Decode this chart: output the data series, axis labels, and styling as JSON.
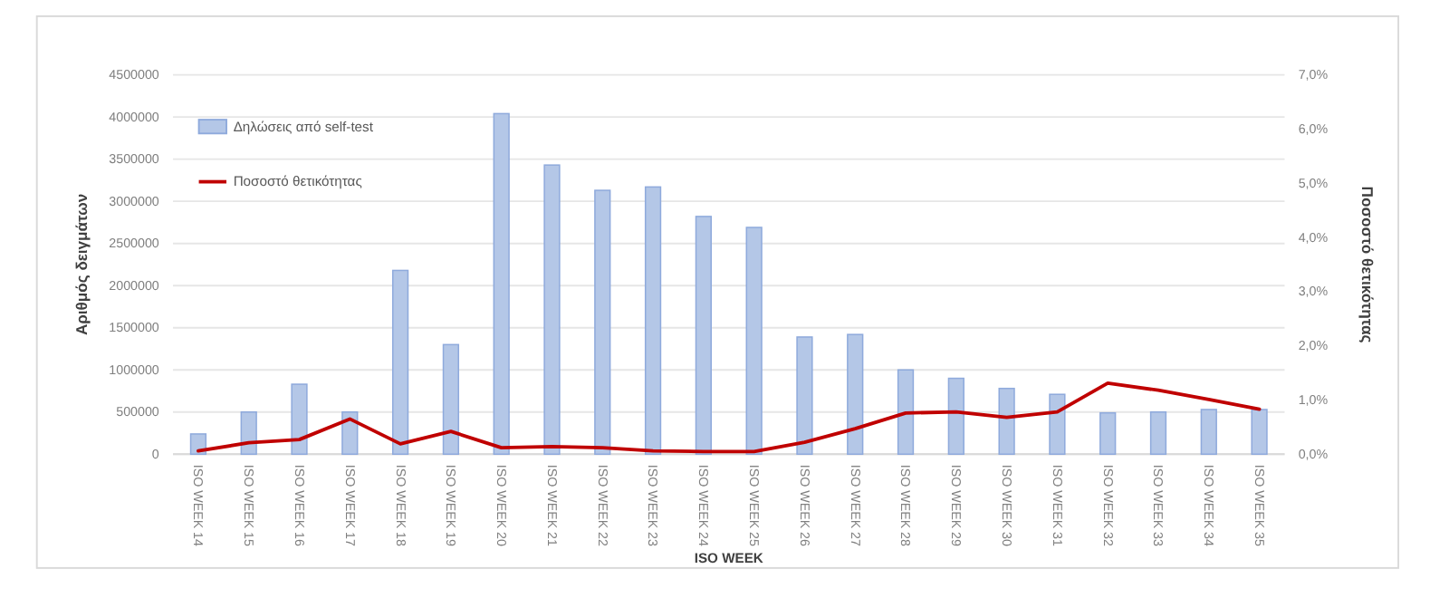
{
  "chart_data": {
    "type": "bar",
    "xlabel": "ISO WEEK",
    "ylabel": "Αριθμός δειγμάτων",
    "y2label": "Ποσοστό θετικότητας",
    "categories": [
      "ISO WEEK 14",
      "ISO WEEK 15",
      "ISO WEEK 16",
      "ISO WEEK 17",
      "ISO WEEK 18",
      "ISO WEEK 19",
      "ISO WEEK 20",
      "ISO WEEK 21",
      "ISO WEEK 22",
      "ISO WEEK 23",
      "ISO WEEK 24",
      "ISO WEEK 25",
      "ISO WEEK 26",
      "ISO WEEK 27",
      "ISO WEEK 28",
      "ISO WEEK 29",
      "ISO WEEK 30",
      "ISO WEEK 31",
      "ISO WEEK 32",
      "ISO WEEK 33",
      "ISO WEEK 34",
      "ISO WEEK 35"
    ],
    "series": [
      {
        "name": "Δηλώσεις από self-test",
        "color": "#b4c7e7",
        "values": [
          240000,
          500000,
          830000,
          500000,
          2180000,
          1300000,
          4040000,
          3430000,
          3130000,
          3170000,
          2820000,
          2690000,
          1390000,
          1420000,
          1000000,
          900000,
          780000,
          710000,
          490000,
          500000,
          530000,
          530000
        ]
      },
      {
        "name": "Ποσοστό θετικότητας",
        "type": "line",
        "axis": "y2",
        "color": "#c00000",
        "values": [
          0.06,
          0.21,
          0.27,
          0.65,
          0.19,
          0.42,
          0.12,
          0.14,
          0.12,
          0.06,
          0.05,
          0.05,
          0.22,
          0.47,
          0.76,
          0.78,
          0.68,
          0.78,
          1.31,
          1.18,
          1.01,
          0.83
        ]
      }
    ],
    "ylim": [
      0,
      4500000
    ],
    "yticks": [
      0,
      500000,
      1000000,
      1500000,
      2000000,
      2500000,
      3000000,
      3500000,
      4000000,
      4500000
    ],
    "y2lim": [
      0,
      7
    ],
    "y2ticks": [
      {
        "value": 0,
        "label": "0,0%"
      },
      {
        "value": 1,
        "label": "1,0%"
      },
      {
        "value": 2,
        "label": "2,0%"
      },
      {
        "value": 3,
        "label": "3,0%"
      },
      {
        "value": 4,
        "label": "4,0%"
      },
      {
        "value": 5,
        "label": "5,0%"
      },
      {
        "value": 6,
        "label": "6,0%"
      },
      {
        "value": 7,
        "label": "7,0%"
      }
    ],
    "grid": "y",
    "legend": "top left"
  }
}
